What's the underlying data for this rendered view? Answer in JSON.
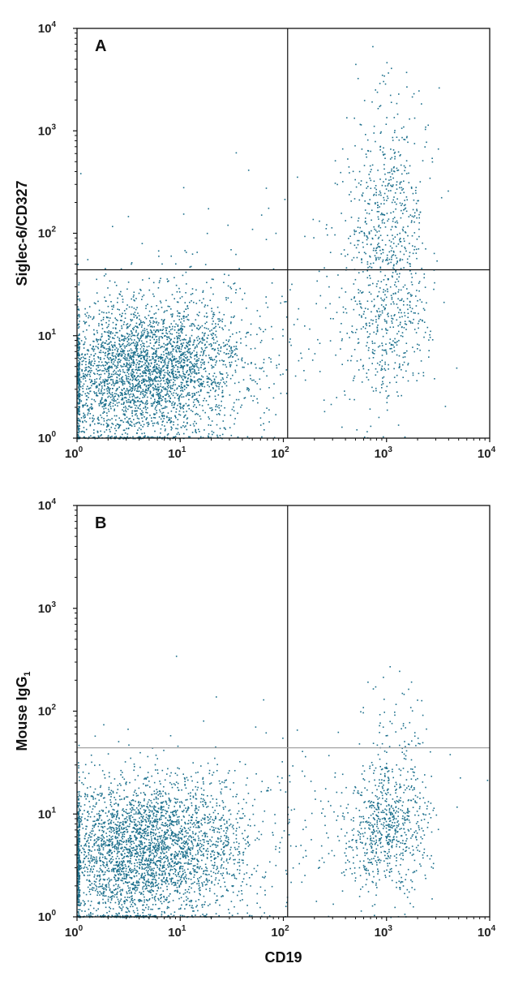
{
  "colors": {
    "points": "#1b6f8c",
    "axes": "#111111",
    "gate_line_a": "#111111",
    "gate_line_b": "#9a9a9a"
  },
  "chart_data": [
    {
      "type": "scatter",
      "panel_label": "A",
      "xlabel": "",
      "ylabel": "Siglec-6/CD327",
      "x_scale": "log",
      "y_scale": "log",
      "xlim": [
        1,
        10000
      ],
      "ylim": [
        1,
        10000
      ],
      "x_tick_base": "10",
      "x_tick_exponents": [
        "0",
        "1",
        "2",
        "3",
        "4"
      ],
      "y_tick_base": "10",
      "y_tick_exponents": [
        "0",
        "1",
        "2",
        "3",
        "4"
      ],
      "quadrant_gate": {
        "x": 110,
        "y": 44
      },
      "grid": false,
      "populations": [
        {
          "description": "double negative",
          "x_center": 6,
          "y_center": 5,
          "x_spread_decades": 0.45,
          "y_spread_decades": 0.35,
          "approx_count": 2600
        },
        {
          "description": "double negative tail",
          "x_center": 2,
          "y_center": 3,
          "x_spread_decades": 0.3,
          "y_spread_decades": 0.35,
          "approx_count": 700
        },
        {
          "description": "CD19+ Siglec-6+",
          "x_center": 1000,
          "y_center": 120,
          "x_spread_decades": 0.2,
          "y_spread_decades": 0.6,
          "approx_count": 650
        },
        {
          "description": "CD19+ Siglec-6 low",
          "x_center": 1000,
          "y_center": 10,
          "x_spread_decades": 0.22,
          "y_spread_decades": 0.35,
          "approx_count": 300
        },
        {
          "description": "scattered events",
          "x_center": 60,
          "y_center": 20,
          "x_spread_decades": 0.7,
          "y_spread_decades": 0.6,
          "approx_count": 180
        }
      ]
    },
    {
      "type": "scatter",
      "panel_label": "B",
      "xlabel": "CD19",
      "ylabel": "Mouse IgG",
      "ylabel_subscript": "1",
      "x_scale": "log",
      "y_scale": "log",
      "xlim": [
        1,
        10000
      ],
      "ylim": [
        1,
        10000
      ],
      "x_tick_base": "10",
      "x_tick_exponents": [
        "0",
        "1",
        "2",
        "3",
        "4"
      ],
      "y_tick_base": "10",
      "y_tick_exponents": [
        "0",
        "1",
        "2",
        "3",
        "4"
      ],
      "quadrant_gate": {
        "x": 110,
        "y": 44
      },
      "grid": false,
      "populations": [
        {
          "description": "double negative",
          "x_center": 6,
          "y_center": 5,
          "x_spread_decades": 0.45,
          "y_spread_decades": 0.35,
          "approx_count": 2600
        },
        {
          "description": "double negative tail",
          "x_center": 2,
          "y_center": 3,
          "x_spread_decades": 0.3,
          "y_spread_decades": 0.35,
          "approx_count": 700
        },
        {
          "description": "CD19+ isotype",
          "x_center": 1000,
          "y_center": 7,
          "x_spread_decades": 0.22,
          "y_spread_decades": 0.3,
          "approx_count": 700
        },
        {
          "description": "CD19+ isotype upper tail",
          "x_center": 1200,
          "y_center": 60,
          "x_spread_decades": 0.18,
          "y_spread_decades": 0.35,
          "approx_count": 90
        },
        {
          "description": "scattered events",
          "x_center": 60,
          "y_center": 8,
          "x_spread_decades": 0.7,
          "y_spread_decades": 0.5,
          "approx_count": 150
        }
      ]
    }
  ]
}
